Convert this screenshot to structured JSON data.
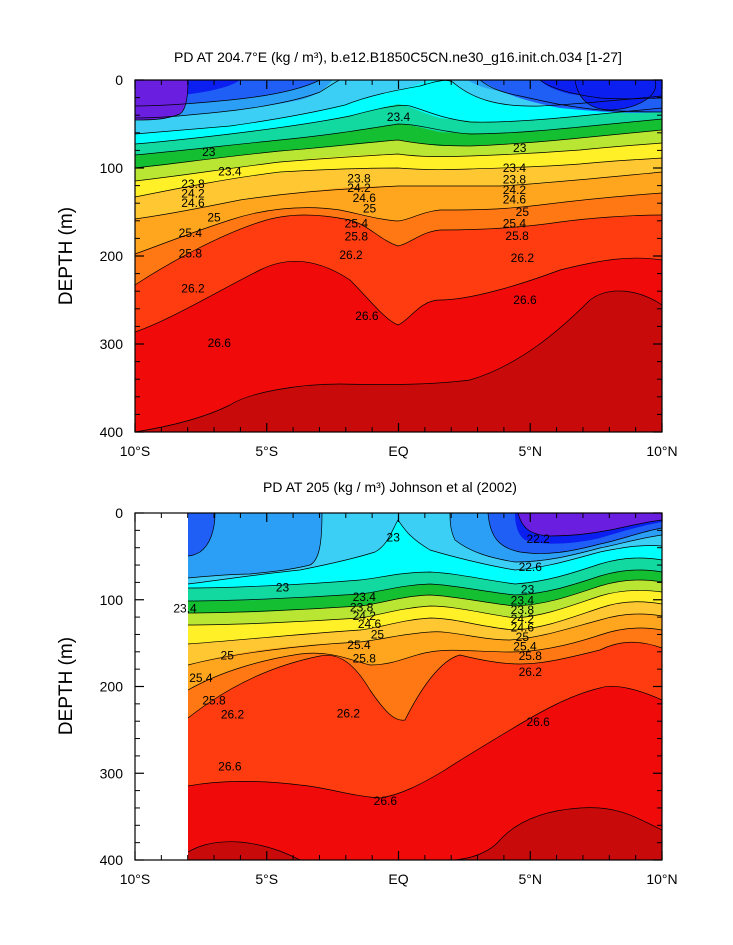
{
  "chart_data": [
    {
      "type": "contour",
      "title": "PD AT 204.7°E (kg / m³), b.e12.B1850C5CN.ne30_g16.init.ch.034 [1-27]",
      "ylabel": "DEPTH (m)",
      "xlabel": "",
      "x_ticks": [
        "10°S",
        "5°S",
        "EQ",
        "5°N",
        "10°N"
      ],
      "y_ticks": [
        "0",
        "100",
        "200",
        "300",
        "400"
      ],
      "xlim": [
        -10,
        10
      ],
      "ylim": [
        0,
        400
      ],
      "levels": [
        22.2,
        22.6,
        23,
        23.4,
        23.8,
        24.2,
        24.6,
        25,
        25.4,
        25.8,
        26.2,
        26.6
      ],
      "contour_labels": [
        {
          "text": "23.4",
          "x": 0,
          "y": 42
        },
        {
          "text": "23",
          "x": -7.2,
          "y": 82
        },
        {
          "text": "23.4",
          "x": -6.4,
          "y": 104
        },
        {
          "text": "23.8",
          "x": -7.8,
          "y": 118
        },
        {
          "text": "24.2",
          "x": -7.8,
          "y": 129
        },
        {
          "text": "24.6",
          "x": -7.8,
          "y": 140
        },
        {
          "text": "25",
          "x": -7.0,
          "y": 156
        },
        {
          "text": "25.4",
          "x": -7.9,
          "y": 174
        },
        {
          "text": "25.8",
          "x": -7.9,
          "y": 197
        },
        {
          "text": "26.2",
          "x": -7.8,
          "y": 237
        },
        {
          "text": "26.6",
          "x": -6.8,
          "y": 299
        },
        {
          "text": "26.6",
          "x": -1.2,
          "y": 268
        },
        {
          "text": "23.8",
          "x": -1.5,
          "y": 112
        },
        {
          "text": "24.2",
          "x": -1.5,
          "y": 123
        },
        {
          "text": "24.6",
          "x": -1.3,
          "y": 134
        },
        {
          "text": "25",
          "x": -1.1,
          "y": 146
        },
        {
          "text": "25.4",
          "x": -1.6,
          "y": 163
        },
        {
          "text": "25.8",
          "x": -1.6,
          "y": 178
        },
        {
          "text": "26.2",
          "x": -1.8,
          "y": 199
        },
        {
          "text": "23",
          "x": 4.6,
          "y": 77
        },
        {
          "text": "23.4",
          "x": 4.4,
          "y": 100
        },
        {
          "text": "23.8",
          "x": 4.4,
          "y": 113
        },
        {
          "text": "24.2",
          "x": 4.4,
          "y": 125
        },
        {
          "text": "24.6",
          "x": 4.4,
          "y": 136
        },
        {
          "text": "25",
          "x": 4.7,
          "y": 150
        },
        {
          "text": "25.4",
          "x": 4.4,
          "y": 163
        },
        {
          "text": "25.8",
          "x": 4.5,
          "y": 177
        },
        {
          "text": "26.2",
          "x": 4.7,
          "y": 202
        },
        {
          "text": "26.6",
          "x": 4.8,
          "y": 250
        }
      ]
    },
    {
      "type": "contour",
      "title": "PD AT 205 (kg / m³) Johnson et al (2002)",
      "ylabel": "DEPTH (m)",
      "xlabel": "",
      "x_ticks": [
        "10°S",
        "5°S",
        "EQ",
        "5°N",
        "10°N"
      ],
      "y_ticks": [
        "0",
        "100",
        "200",
        "300",
        "400"
      ],
      "xlim": [
        -10,
        10
      ],
      "ylim": [
        0,
        400
      ],
      "data_x_range": [
        -8,
        10
      ],
      "levels": [
        22.2,
        22.6,
        23,
        23.4,
        23.8,
        24.2,
        24.6,
        25,
        25.4,
        25.8,
        26.2,
        26.6
      ],
      "contour_labels": [
        {
          "text": "23",
          "x": -0.2,
          "y": 28
        },
        {
          "text": "22.2",
          "x": 5.3,
          "y": 30
        },
        {
          "text": "22.6",
          "x": 5.0,
          "y": 62
        },
        {
          "text": "23",
          "x": -4.4,
          "y": 86
        },
        {
          "text": "23",
          "x": 4.9,
          "y": 88
        },
        {
          "text": "23.4",
          "x": -8.1,
          "y": 110
        },
        {
          "text": "23.4",
          "x": -1.3,
          "y": 97
        },
        {
          "text": "23.8",
          "x": -1.4,
          "y": 109
        },
        {
          "text": "24.2",
          "x": -1.3,
          "y": 119
        },
        {
          "text": "24.6",
          "x": -1.1,
          "y": 128
        },
        {
          "text": "25",
          "x": -0.8,
          "y": 140
        },
        {
          "text": "25.4",
          "x": -1.5,
          "y": 152
        },
        {
          "text": "25.8",
          "x": -1.3,
          "y": 168
        },
        {
          "text": "26.2",
          "x": -1.9,
          "y": 231
        },
        {
          "text": "23.4",
          "x": 4.7,
          "y": 101
        },
        {
          "text": "23.8",
          "x": 4.7,
          "y": 112
        },
        {
          "text": "24.2",
          "x": 4.7,
          "y": 122
        },
        {
          "text": "24.6",
          "x": 4.7,
          "y": 132
        },
        {
          "text": "25",
          "x": 4.7,
          "y": 143
        },
        {
          "text": "25.4",
          "x": 4.8,
          "y": 154
        },
        {
          "text": "25.8",
          "x": 5.0,
          "y": 165
        },
        {
          "text": "26.2",
          "x": 5.0,
          "y": 183
        },
        {
          "text": "26.6",
          "x": 5.3,
          "y": 241
        },
        {
          "text": "25",
          "x": -6.5,
          "y": 164
        },
        {
          "text": "25.4",
          "x": -7.5,
          "y": 190
        },
        {
          "text": "25.8",
          "x": -7.0,
          "y": 216
        },
        {
          "text": "26.2",
          "x": -6.3,
          "y": 232
        },
        {
          "text": "26.6",
          "x": -6.4,
          "y": 292
        },
        {
          "text": "26.6",
          "x": -0.5,
          "y": 332
        }
      ]
    }
  ],
  "palette": [
    "#6a1fe0",
    "#0a1ff0",
    "#1f5ff5",
    "#2a9ff5",
    "#3ccff5",
    "#00ffff",
    "#12d9a0",
    "#14c032",
    "#b9e632",
    "#fff028",
    "#ffc832",
    "#ffa51e",
    "#ff7814",
    "#ff3c0f",
    "#f00a0a",
    "#c80a0a"
  ]
}
